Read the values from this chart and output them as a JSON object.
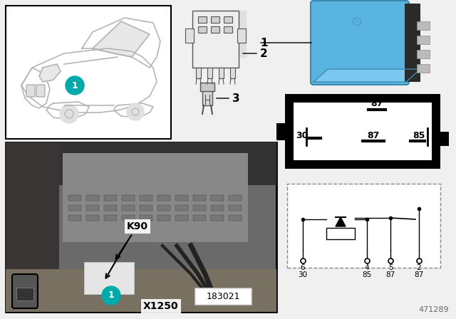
{
  "bg_color": "#f0f0f0",
  "white": "#ffffff",
  "black": "#000000",
  "gray_light": "#cccccc",
  "gray_mid": "#999999",
  "gray_dark": "#555555",
  "relay_blue": "#5ab4e0",
  "relay_blue_dark": "#3a8ab0",
  "relay_blue_top": "#7ac8f0",
  "teal": "#00aaaa",
  "car_line": "#b0b0b0",
  "part_number": "471289",
  "ref_number": "183021",
  "label1": "1",
  "label2": "2",
  "label3": "3",
  "labelK90": "K90",
  "labelX1250": "X1250",
  "circuit_pins": [
    "6",
    "4",
    "5",
    "2"
  ],
  "circuit_pin_labels": [
    "30",
    "85",
    "87",
    "87"
  ],
  "relay_box_pins": [
    "87",
    "30",
    "87",
    "85"
  ]
}
